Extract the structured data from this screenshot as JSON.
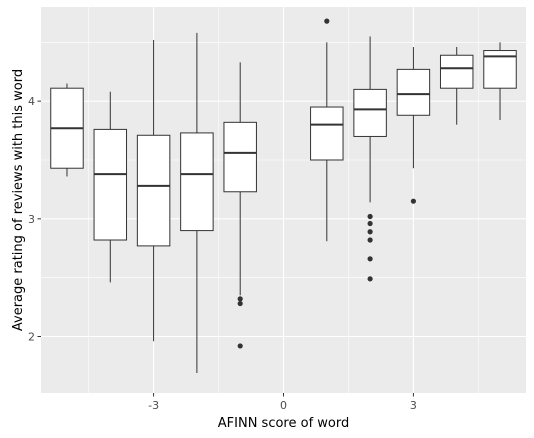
{
  "chart_data": {
    "type": "boxplot",
    "xlabel": "AFINN score of word",
    "ylabel": "Average rating of reviews with this word",
    "x_ticks": [
      -3,
      0,
      3
    ],
    "x_tick_labels": [
      "-3",
      "0",
      "3"
    ],
    "y_ticks": [
      2,
      3,
      4
    ],
    "y_tick_labels": [
      "2",
      "3",
      "4"
    ],
    "xlim": [
      -5.6,
      5.6
    ],
    "ylim": [
      1.52,
      4.8
    ],
    "grid": true,
    "panel_background": "#ebebeb",
    "grid_color": "#ffffff",
    "box_fill": "#ffffff",
    "line_color": "#333333",
    "boxes": [
      {
        "x": -5,
        "whisker_low": 3.36,
        "q1": 3.43,
        "median": 3.77,
        "q3": 4.11,
        "whisker_high": 4.15,
        "outliers": []
      },
      {
        "x": -4,
        "whisker_low": 2.46,
        "q1": 2.82,
        "median": 3.38,
        "q3": 3.76,
        "whisker_high": 4.08,
        "outliers": []
      },
      {
        "x": -3,
        "whisker_low": 1.96,
        "q1": 2.77,
        "median": 3.28,
        "q3": 3.71,
        "whisker_high": 4.52,
        "outliers": []
      },
      {
        "x": -2,
        "whisker_low": 1.69,
        "q1": 2.9,
        "median": 3.38,
        "q3": 3.73,
        "whisker_high": 4.58,
        "outliers": []
      },
      {
        "x": -1,
        "whisker_low": 2.35,
        "q1": 3.23,
        "median": 3.56,
        "q3": 3.82,
        "whisker_high": 4.33,
        "outliers": [
          2.32,
          2.28,
          1.92
        ]
      },
      {
        "x": 1,
        "whisker_low": 2.81,
        "q1": 3.5,
        "median": 3.8,
        "q3": 3.95,
        "whisker_high": 4.5,
        "outliers": [
          4.68
        ]
      },
      {
        "x": 2,
        "whisker_low": 3.14,
        "q1": 3.7,
        "median": 3.93,
        "q3": 4.1,
        "whisker_high": 4.55,
        "outliers": [
          3.02,
          2.96,
          2.89,
          2.82,
          2.66,
          2.49
        ]
      },
      {
        "x": 3,
        "whisker_low": 3.43,
        "q1": 3.88,
        "median": 4.06,
        "q3": 4.27,
        "whisker_high": 4.46,
        "outliers": [
          3.15
        ]
      },
      {
        "x": 4,
        "whisker_low": 3.8,
        "q1": 4.11,
        "median": 4.28,
        "q3": 4.39,
        "whisker_high": 4.46,
        "outliers": []
      },
      {
        "x": 5,
        "whisker_low": 3.84,
        "q1": 4.11,
        "median": 4.38,
        "q3": 4.43,
        "whisker_high": 4.5,
        "outliers": []
      }
    ]
  }
}
